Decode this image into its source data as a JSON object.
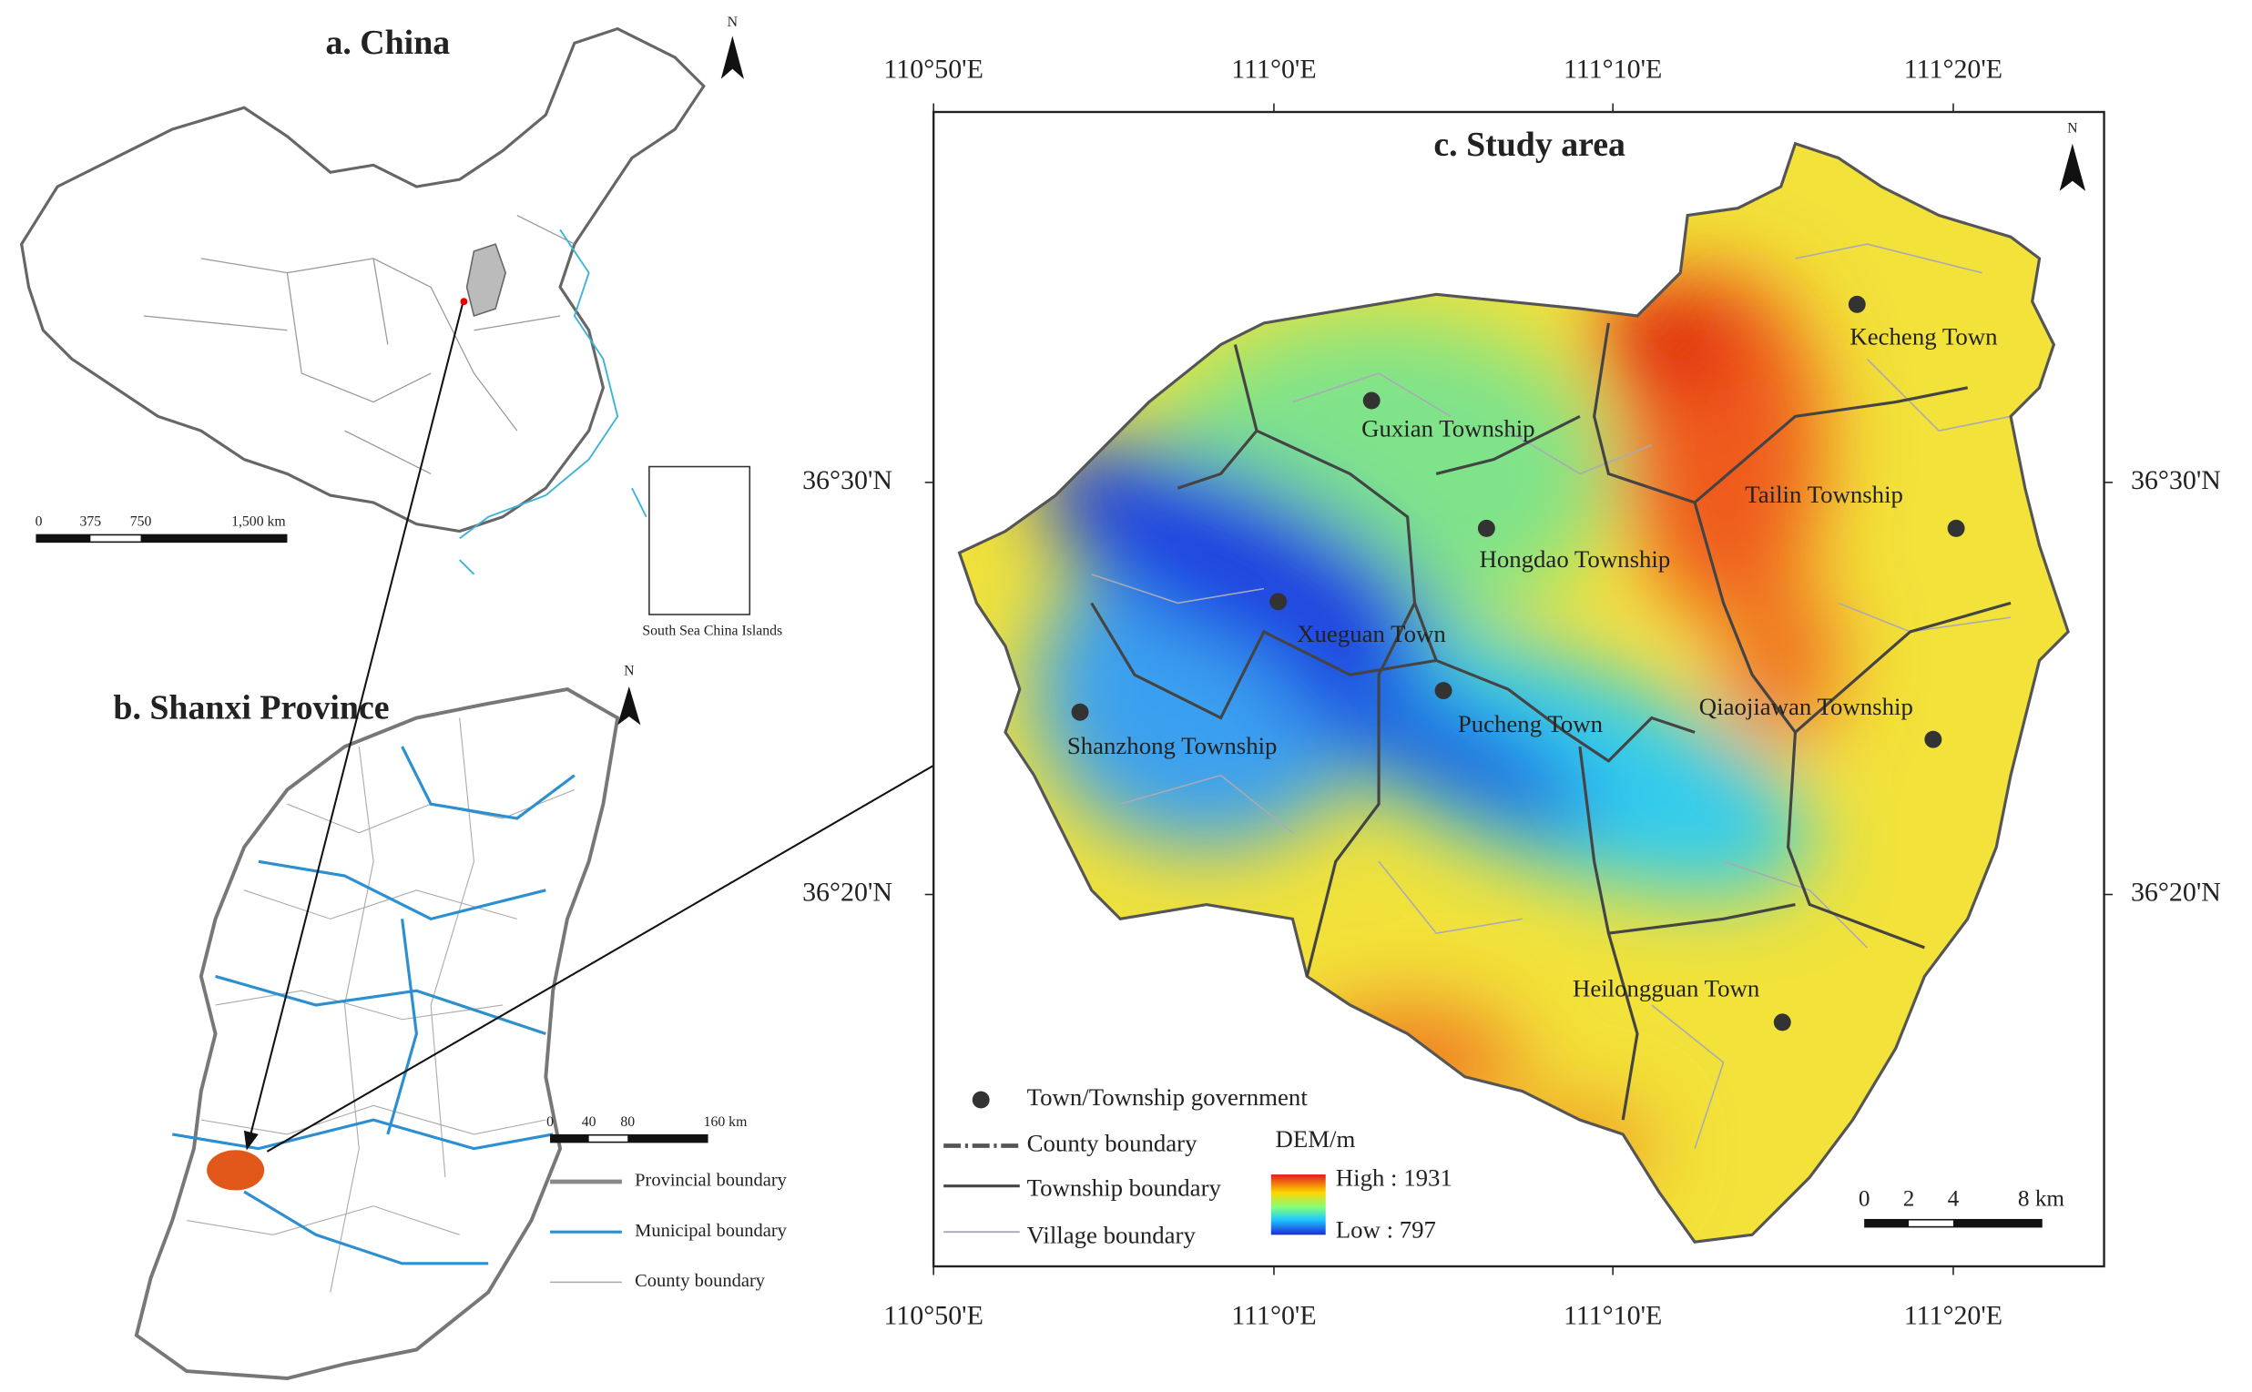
{
  "panel_a": {
    "title": "a. China",
    "north": "N",
    "scale_labels": [
      "0",
      "375",
      "750",
      "1,500 km"
    ],
    "inset_label": "South Sea China Islands"
  },
  "panel_b": {
    "title": "b. Shanxi Province",
    "north": "N",
    "scale_labels": [
      "0",
      "40",
      "80",
      "160 km"
    ],
    "legend": [
      "Provincial boundary",
      "Municipal boundary",
      "County boundary"
    ]
  },
  "panel_c": {
    "title": "c. Study area",
    "north": "N",
    "longitudes": [
      "110°50'E",
      "111°0'E",
      "111°10'E",
      "111°20'E"
    ],
    "latitudes": [
      "36°30'N",
      "36°20'N"
    ],
    "towns": [
      "Kecheng Town",
      "Guxian Township",
      "Tailin Township",
      "Hongdao Township",
      "Xueguan Town",
      "Qiaojiawan Township",
      "Shanzhong Township",
      "Pucheng Town",
      "Heilongguan Town"
    ],
    "legend": {
      "town": "Town/Township government",
      "county": "County boundary",
      "township": "Township boundary",
      "village": "Village boundary",
      "dem_title": "DEM/m",
      "dem_high": "High : 1931",
      "dem_low": "Low : 797"
    },
    "scale_labels": [
      "0",
      "2",
      "4",
      "8 km"
    ]
  }
}
